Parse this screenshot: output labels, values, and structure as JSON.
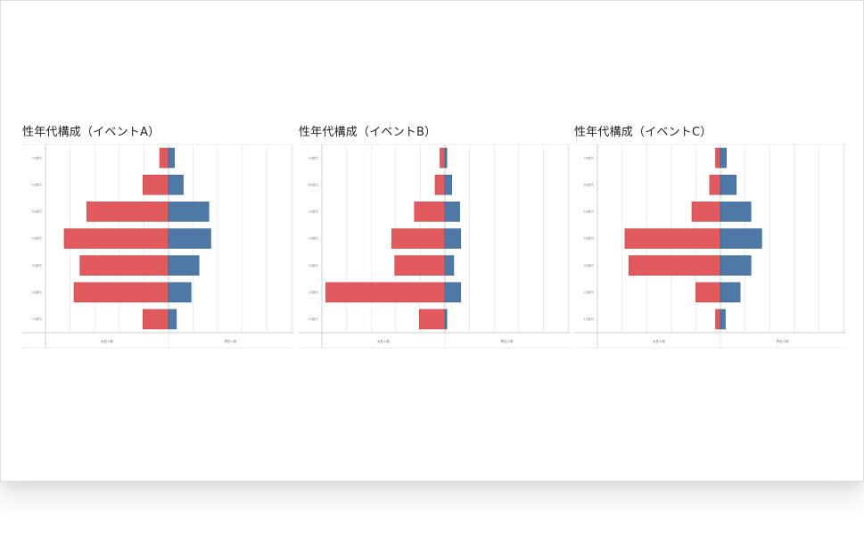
{
  "colors": {
    "female": "#e05a5e",
    "male": "#4e79a7",
    "grid": "#ececec",
    "axis": "#cfcfcf"
  },
  "chart_data": [
    {
      "type": "bar",
      "title": "性年代構成（イベントA）",
      "categories": [
        "70歳代",
        "60歳代",
        "50歳代",
        "40歳代",
        "30歳代",
        "20歳代",
        "10歳代"
      ],
      "series": [
        {
          "name": "女性人数",
          "values": [
            -9,
            -26,
            -83,
            -106,
            -90,
            -96,
            -26
          ]
        },
        {
          "name": "男性人数",
          "values": [
            6,
            15,
            41,
            43,
            31,
            23,
            8
          ]
        }
      ],
      "xlim": [
        -125,
        125
      ],
      "xlabels": [
        "女性人数",
        "男性人数"
      ],
      "grid": true
    },
    {
      "type": "bar",
      "title": "性年代構成（イベントB）",
      "categories": [
        "70歳代",
        "60歳代",
        "50歳代",
        "40歳代",
        "30歳代",
        "20歳代",
        "10歳代"
      ],
      "series": [
        {
          "name": "女性人数",
          "values": [
            -5,
            -10,
            -31,
            -54,
            -51,
            -121,
            -26
          ]
        },
        {
          "name": "男性人数",
          "values": [
            2,
            7,
            15,
            16,
            9,
            16,
            2
          ]
        }
      ],
      "xlim": [
        -125,
        125
      ],
      "xlabels": [
        "女性人数",
        "男性人数"
      ],
      "grid": true
    },
    {
      "type": "bar",
      "title": "性年代構成（イベントC）",
      "categories": [
        "70歳代",
        "60歳代",
        "50歳代",
        "40歳代",
        "30歳代",
        "20歳代",
        "10歳代"
      ],
      "series": [
        {
          "name": "女性人数",
          "values": [
            -5,
            -11,
            -29,
            -97,
            -93,
            -25,
            -5
          ]
        },
        {
          "name": "男性人数",
          "values": [
            6,
            16,
            31,
            42,
            31,
            20,
            5
          ]
        }
      ],
      "xlim": [
        -125,
        125
      ],
      "xlabels": [
        "女性人数",
        "男性人数"
      ],
      "grid": true
    }
  ]
}
